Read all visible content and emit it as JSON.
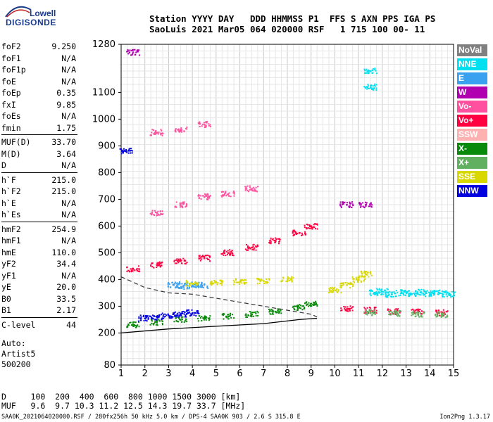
{
  "logo": {
    "line1": "Lowell",
    "line2": "DIGISONDE"
  },
  "header": {
    "labels": "Station YYYY DAY   DDD HHMMSS P1  FFS S AXN PPS IGA PS",
    "values": "SaoLuis 2021 Mar05 064 020000 RSF   1 715 100 00- 11"
  },
  "params": [
    {
      "key": "foF2",
      "value": "9.250"
    },
    {
      "key": "foF1",
      "value": "N/A"
    },
    {
      "key": "foF1p",
      "value": "N/A"
    },
    {
      "key": "foE",
      "value": "N/A"
    },
    {
      "key": "foEp",
      "value": "0.35"
    },
    {
      "key": "fxI",
      "value": "9.85"
    },
    {
      "key": "foEs",
      "value": "N/A"
    },
    {
      "key": "fmin",
      "value": "1.75"
    },
    {
      "key": "MUF(D)",
      "value": "33.70",
      "sep": true
    },
    {
      "key": "M(D)",
      "value": "3.64"
    },
    {
      "key": "D",
      "value": "N/A"
    },
    {
      "key": "h`F",
      "value": "215.0",
      "sep": true
    },
    {
      "key": "h`F2",
      "value": "215.0"
    },
    {
      "key": "h`E",
      "value": "N/A"
    },
    {
      "key": "h`Es",
      "value": "N/A"
    },
    {
      "key": "hmF2",
      "value": "254.9",
      "sep": true
    },
    {
      "key": "hmF1",
      "value": "N/A"
    },
    {
      "key": "hmE",
      "value": "110.0"
    },
    {
      "key": "yF2",
      "value": "34.4"
    },
    {
      "key": "yF1",
      "value": "N/A"
    },
    {
      "key": "yE",
      "value": "20.0"
    },
    {
      "key": "B0",
      "value": "33.5"
    },
    {
      "key": "B1",
      "value": "2.17"
    },
    {
      "key": "C-level",
      "value": "44",
      "sep": true
    }
  ],
  "auto": {
    "line1": "Auto:",
    "line2": "Artist5",
    "line3": "500200"
  },
  "legend": [
    {
      "label": "NoVal",
      "color": "#808080"
    },
    {
      "label": "NNE",
      "color": "#00e0f0"
    },
    {
      "label": "E",
      "color": "#3aa0f0"
    },
    {
      "label": "W",
      "color": "#b000b0"
    },
    {
      "label": "Vo-",
      "color": "#ff50a0"
    },
    {
      "label": "Vo+",
      "color": "#ff0040"
    },
    {
      "label": "SSW",
      "color": "#ffb0b0"
    },
    {
      "label": "X-",
      "color": "#0a8a0a"
    },
    {
      "label": "X+",
      "color": "#60b060"
    },
    {
      "label": "SSE",
      "color": "#d8d800"
    },
    {
      "label": "NNW",
      "color": "#0000e0"
    }
  ],
  "muf_table": {
    "d_row": "D     100  200  400  600  800 1000 1500 3000 [km]",
    "muf_row": "MUF   9.6  9.7 10.3 11.2 12.5 14.3 19.7 33.7 [MHz]"
  },
  "footer": {
    "left": "SAA0K_2021064020000.RSF / 280fx256h 50 kHz 5.0 km / DPS-4 SAA0K 903 / 2.6 S 315.8 E",
    "right": "Ion2Png 1.3.17"
  },
  "chart_data": {
    "type": "scatter",
    "title": "",
    "xlabel": "",
    "ylabel": "",
    "xlim": [
      1,
      15
    ],
    "ylim": [
      80,
      1280
    ],
    "x_ticks": [
      1,
      2,
      3,
      4,
      5,
      6,
      7,
      8,
      9,
      10,
      11,
      12,
      13,
      14,
      15
    ],
    "y_ticks": [
      80,
      200,
      300,
      400,
      500,
      600,
      700,
      800,
      900,
      1000,
      1100,
      1280
    ],
    "grid": true,
    "series": [
      {
        "name": "NoVal",
        "color": "#808080",
        "points": []
      },
      {
        "name": "NNE",
        "color": "#00e0f0",
        "points": [
          [
            11.7,
            350
          ],
          [
            12.0,
            355
          ],
          [
            12.4,
            345
          ],
          [
            12.8,
            350
          ],
          [
            13.2,
            348
          ],
          [
            13.6,
            352
          ],
          [
            14.0,
            348
          ],
          [
            14.4,
            350
          ],
          [
            14.8,
            346
          ],
          [
            11.5,
            1120
          ],
          [
            11.5,
            1180
          ]
        ]
      },
      {
        "name": "E",
        "color": "#3aa0f0",
        "points": [
          [
            3.2,
            380
          ],
          [
            3.6,
            375
          ],
          [
            4.0,
            380
          ],
          [
            4.4,
            378
          ]
        ]
      },
      {
        "name": "W",
        "color": "#b000b0",
        "points": [
          [
            1.5,
            1250
          ],
          [
            10.5,
            680
          ],
          [
            11.3,
            680
          ]
        ]
      },
      {
        "name": "Vo-",
        "color": "#ff50a0",
        "points": [
          [
            2.5,
            650
          ],
          [
            3.5,
            680
          ],
          [
            4.5,
            710
          ],
          [
            5.5,
            720
          ],
          [
            6.5,
            740
          ],
          [
            2.5,
            950
          ],
          [
            3.5,
            960
          ],
          [
            4.5,
            980
          ]
        ]
      },
      {
        "name": "Vo+",
        "color": "#ff0040",
        "points": [
          [
            1.5,
            440
          ],
          [
            2.5,
            455
          ],
          [
            3.5,
            470
          ],
          [
            4.5,
            480
          ],
          [
            5.5,
            500
          ],
          [
            6.5,
            520
          ],
          [
            7.5,
            545
          ],
          [
            8.5,
            575
          ],
          [
            9.0,
            600
          ],
          [
            10.5,
            290
          ],
          [
            11.5,
            285
          ],
          [
            12.5,
            280
          ],
          [
            13.5,
            278
          ],
          [
            14.5,
            275
          ]
        ]
      },
      {
        "name": "SSW",
        "color": "#ffb0b0",
        "points": []
      },
      {
        "name": "X-",
        "color": "#0a8a0a",
        "points": [
          [
            1.5,
            230
          ],
          [
            2.5,
            240
          ],
          [
            3.5,
            250
          ],
          [
            4.5,
            255
          ],
          [
            5.5,
            262
          ],
          [
            6.5,
            270
          ],
          [
            7.5,
            280
          ],
          [
            8.5,
            295
          ],
          [
            9.0,
            310
          ]
        ]
      },
      {
        "name": "X+",
        "color": "#60b060",
        "points": [
          [
            11.5,
            275
          ],
          [
            12.5,
            272
          ],
          [
            13.5,
            270
          ],
          [
            14.5,
            268
          ]
        ]
      },
      {
        "name": "SSE",
        "color": "#d8d800",
        "points": [
          [
            4.0,
            385
          ],
          [
            5.0,
            390
          ],
          [
            6.0,
            392
          ],
          [
            7.0,
            395
          ],
          [
            8.0,
            400
          ],
          [
            10.0,
            360
          ],
          [
            10.5,
            380
          ],
          [
            11.0,
            400
          ],
          [
            11.3,
            420
          ]
        ]
      },
      {
        "name": "NNW",
        "color": "#0000e0",
        "points": [
          [
            2.0,
            255
          ],
          [
            2.5,
            260
          ],
          [
            3.0,
            265
          ],
          [
            3.5,
            270
          ],
          [
            4.0,
            275
          ],
          [
            1.2,
            880
          ]
        ]
      }
    ],
    "scaled_profile": [
      [
        1,
        200
      ],
      [
        3,
        215
      ],
      [
        5,
        225
      ],
      [
        7,
        235
      ],
      [
        8.5,
        250
      ],
      [
        9.25,
        255
      ]
    ],
    "dashed_profile": [
      [
        1,
        410
      ],
      [
        2,
        370
      ],
      [
        3,
        350
      ],
      [
        4,
        345
      ],
      [
        5,
        330
      ],
      [
        6,
        315
      ],
      [
        7,
        300
      ],
      [
        8,
        285
      ],
      [
        9,
        270
      ],
      [
        9.25,
        260
      ]
    ]
  }
}
